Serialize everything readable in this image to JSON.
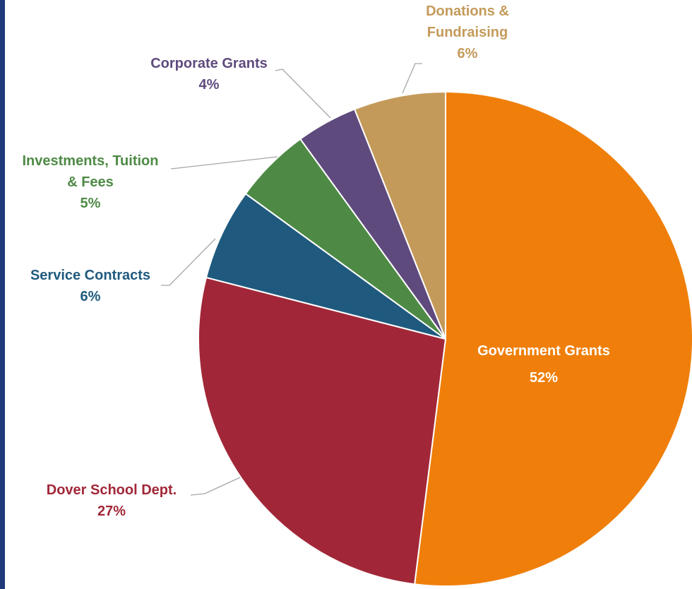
{
  "chart_data": {
    "type": "pie",
    "title": "",
    "slices": [
      {
        "label_lines": [
          "Government Grants"
        ],
        "pct_label": "52%",
        "value": 52,
        "color": "#ef7f0a",
        "label_color": "#ffffff"
      },
      {
        "label_lines": [
          "Dover School Dept."
        ],
        "pct_label": "27%",
        "value": 27,
        "color": "#a12738",
        "label_color": "#a12738"
      },
      {
        "label_lines": [
          "Service Contracts"
        ],
        "pct_label": "6%",
        "value": 6,
        "color": "#1f5a7e",
        "label_color": "#1f5a7e"
      },
      {
        "label_lines": [
          "Investments, Tuition",
          "& Fees"
        ],
        "pct_label": "5%",
        "value": 5,
        "color": "#4e8a45",
        "label_color": "#4e8a45"
      },
      {
        "label_lines": [
          "Corporate Grants"
        ],
        "pct_label": "4%",
        "value": 4,
        "color": "#5f4a7d",
        "label_color": "#5f4a7d"
      },
      {
        "label_lines": [
          "Donations &",
          "Fundraising"
        ],
        "pct_label": "6%",
        "value": 6,
        "color": "#c49a5a",
        "label_color": "#c49a5a"
      }
    ]
  }
}
